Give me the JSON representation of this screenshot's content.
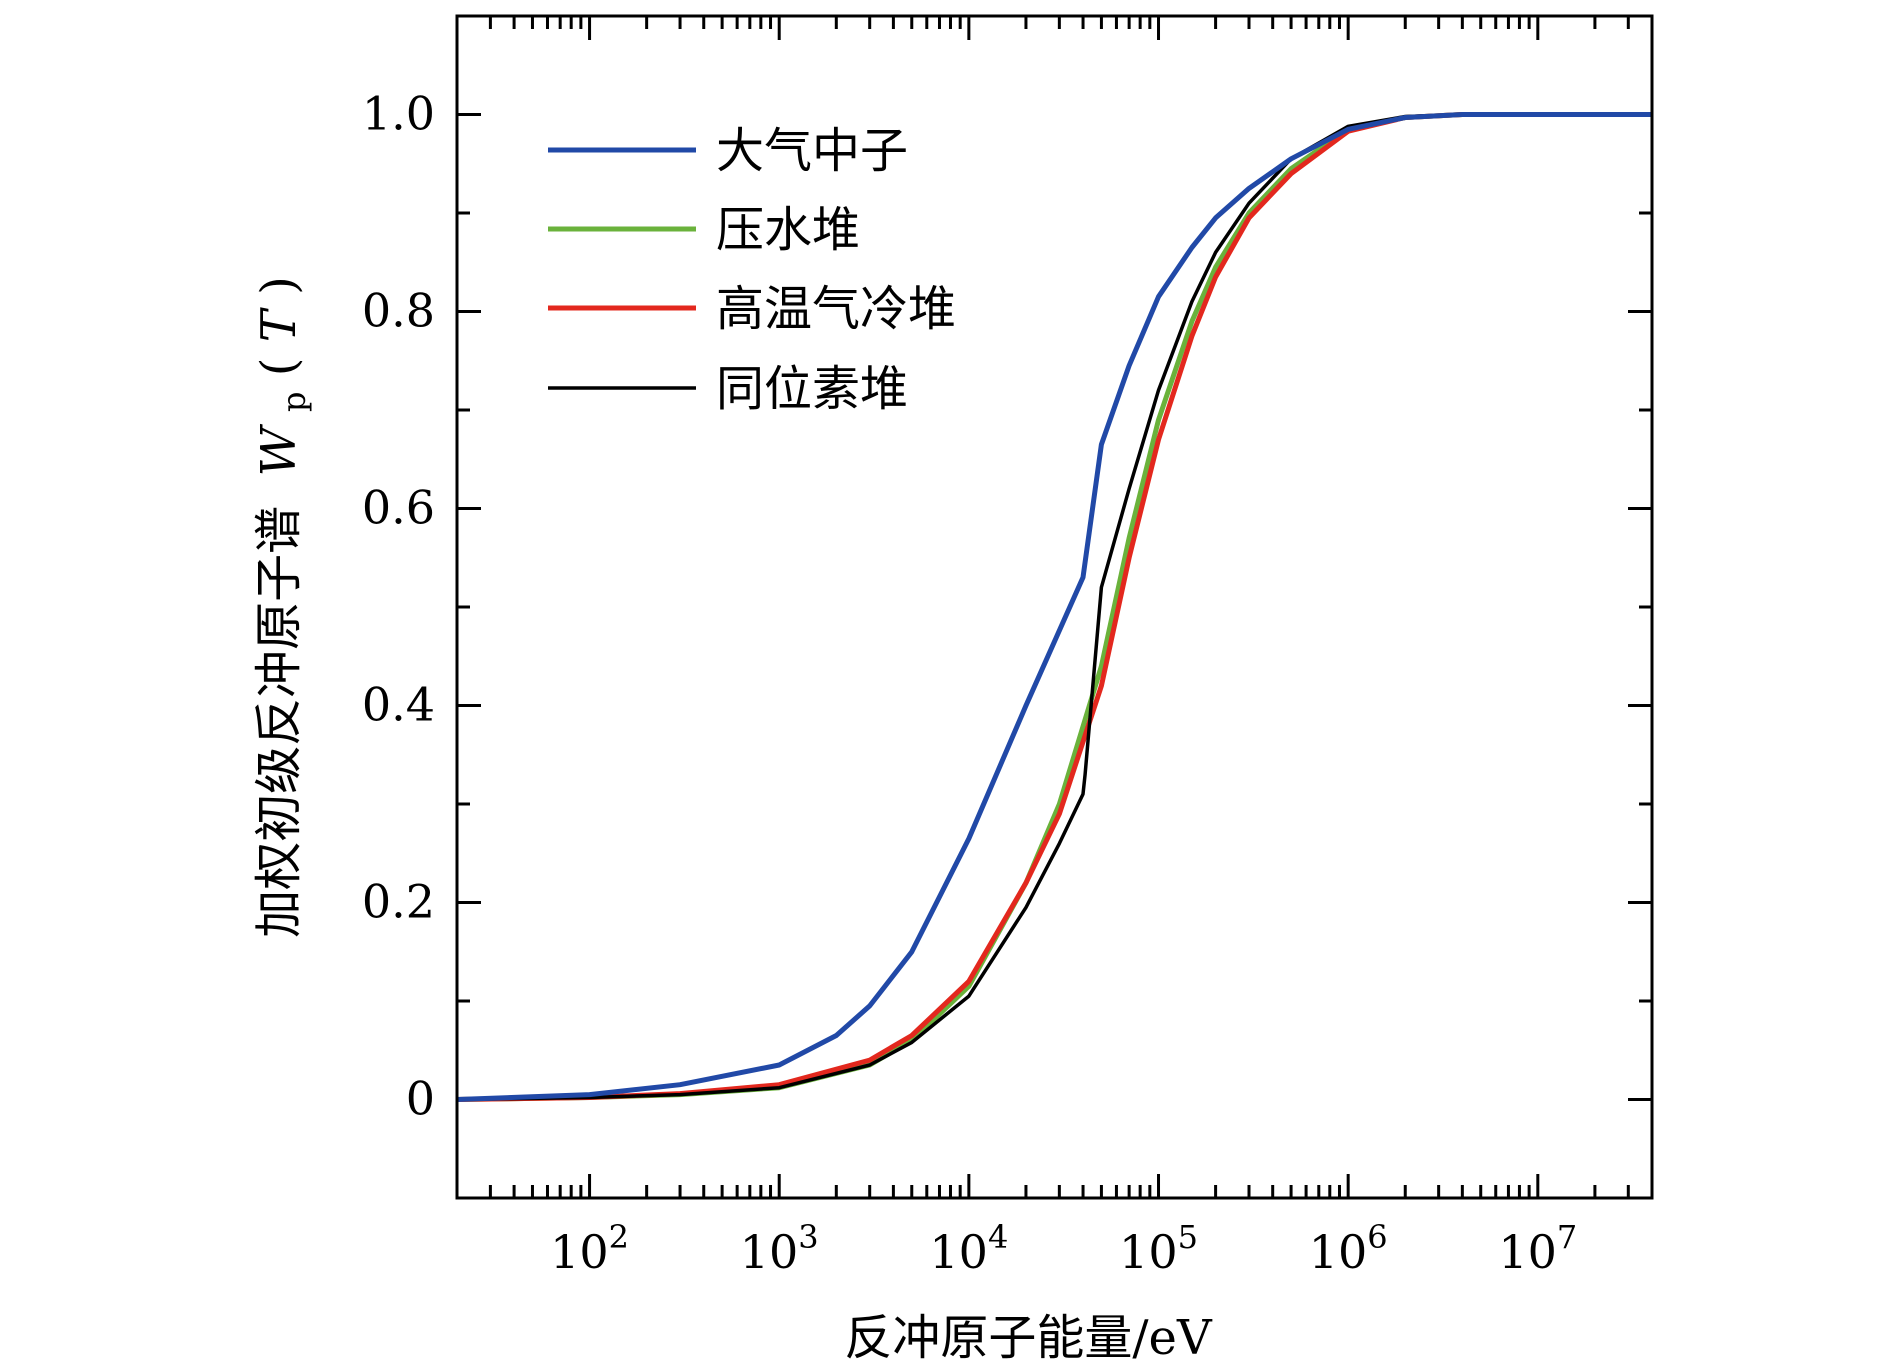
{
  "chart_data": {
    "type": "line",
    "xlabel": "反冲原子能量/eV",
    "ylabel": {
      "prefix": "加权初级反冲原子谱",
      "symbol": "W",
      "subscript": "p",
      "arg_open": "(",
      "arg": "T",
      "arg_close": ")"
    },
    "xscale": "log",
    "xlim": [
      20,
      40000000
    ],
    "ylim": [
      -0.1,
      1.1
    ],
    "x_ticks": [
      {
        "base": "10",
        "exp": "2",
        "value": 100
      },
      {
        "base": "10",
        "exp": "3",
        "value": 1000
      },
      {
        "base": "10",
        "exp": "4",
        "value": 10000
      },
      {
        "base": "10",
        "exp": "5",
        "value": 100000
      },
      {
        "base": "10",
        "exp": "6",
        "value": 1000000
      },
      {
        "base": "10",
        "exp": "7",
        "value": 10000000
      }
    ],
    "y_ticks": [
      {
        "label": "0",
        "value": 0
      },
      {
        "label": "0.2",
        "value": 0.2
      },
      {
        "label": "0.4",
        "value": 0.4
      },
      {
        "label": "0.6",
        "value": 0.6
      },
      {
        "label": "0.8",
        "value": 0.8
      },
      {
        "label": "1.0",
        "value": 1.0
      }
    ],
    "grid": false,
    "legend_position": "top-left",
    "series": [
      {
        "name": "大气中子",
        "color": "#2149a7",
        "x": [
          20,
          100,
          300,
          1000,
          2000,
          3000,
          5000,
          10000,
          20000,
          40000,
          50000,
          70000,
          100000,
          150000,
          200000,
          300000,
          500000,
          1000000,
          2000000,
          4000000,
          10000000,
          40000000
        ],
        "y": [
          0.0,
          0.005,
          0.015,
          0.035,
          0.065,
          0.095,
          0.15,
          0.265,
          0.4,
          0.53,
          0.665,
          0.745,
          0.815,
          0.865,
          0.895,
          0.925,
          0.955,
          0.985,
          0.997,
          1.0,
          1.0,
          1.0
        ]
      },
      {
        "name": "压水堆",
        "color": "#6ab23b",
        "x": [
          20,
          100,
          300,
          1000,
          3000,
          5000,
          10000,
          20000,
          30000,
          50000,
          70000,
          100000,
          150000,
          200000,
          300000,
          500000,
          1000000,
          2000000,
          4000000,
          10000000,
          40000000
        ],
        "y": [
          0.0,
          0.002,
          0.005,
          0.012,
          0.035,
          0.06,
          0.115,
          0.22,
          0.3,
          0.44,
          0.57,
          0.69,
          0.79,
          0.845,
          0.9,
          0.945,
          0.985,
          0.997,
          1.0,
          1.0,
          1.0
        ]
      },
      {
        "name": "高温气冷堆",
        "color": "#e3281e",
        "x": [
          20,
          100,
          300,
          1000,
          3000,
          5000,
          10000,
          20000,
          30000,
          50000,
          70000,
          100000,
          150000,
          200000,
          300000,
          500000,
          1000000,
          2000000,
          4000000,
          10000000,
          40000000
        ],
        "y": [
          0.0,
          0.002,
          0.006,
          0.015,
          0.04,
          0.065,
          0.12,
          0.22,
          0.29,
          0.42,
          0.55,
          0.67,
          0.775,
          0.835,
          0.895,
          0.94,
          0.983,
          0.997,
          1.0,
          1.0,
          1.0
        ]
      },
      {
        "name": "同位素堆",
        "color": "#000000",
        "x": [
          20,
          100,
          300,
          1000,
          3000,
          5000,
          10000,
          20000,
          30000,
          40000,
          41000,
          50000,
          70000,
          100000,
          150000,
          200000,
          300000,
          500000,
          1000000,
          2000000,
          4000000,
          10000000,
          40000000
        ],
        "y": [
          0.0,
          0.002,
          0.005,
          0.012,
          0.035,
          0.058,
          0.105,
          0.195,
          0.26,
          0.31,
          0.33,
          0.52,
          0.62,
          0.72,
          0.81,
          0.86,
          0.91,
          0.955,
          0.988,
          0.998,
          1.0,
          1.0,
          1.0
        ]
      }
    ]
  }
}
